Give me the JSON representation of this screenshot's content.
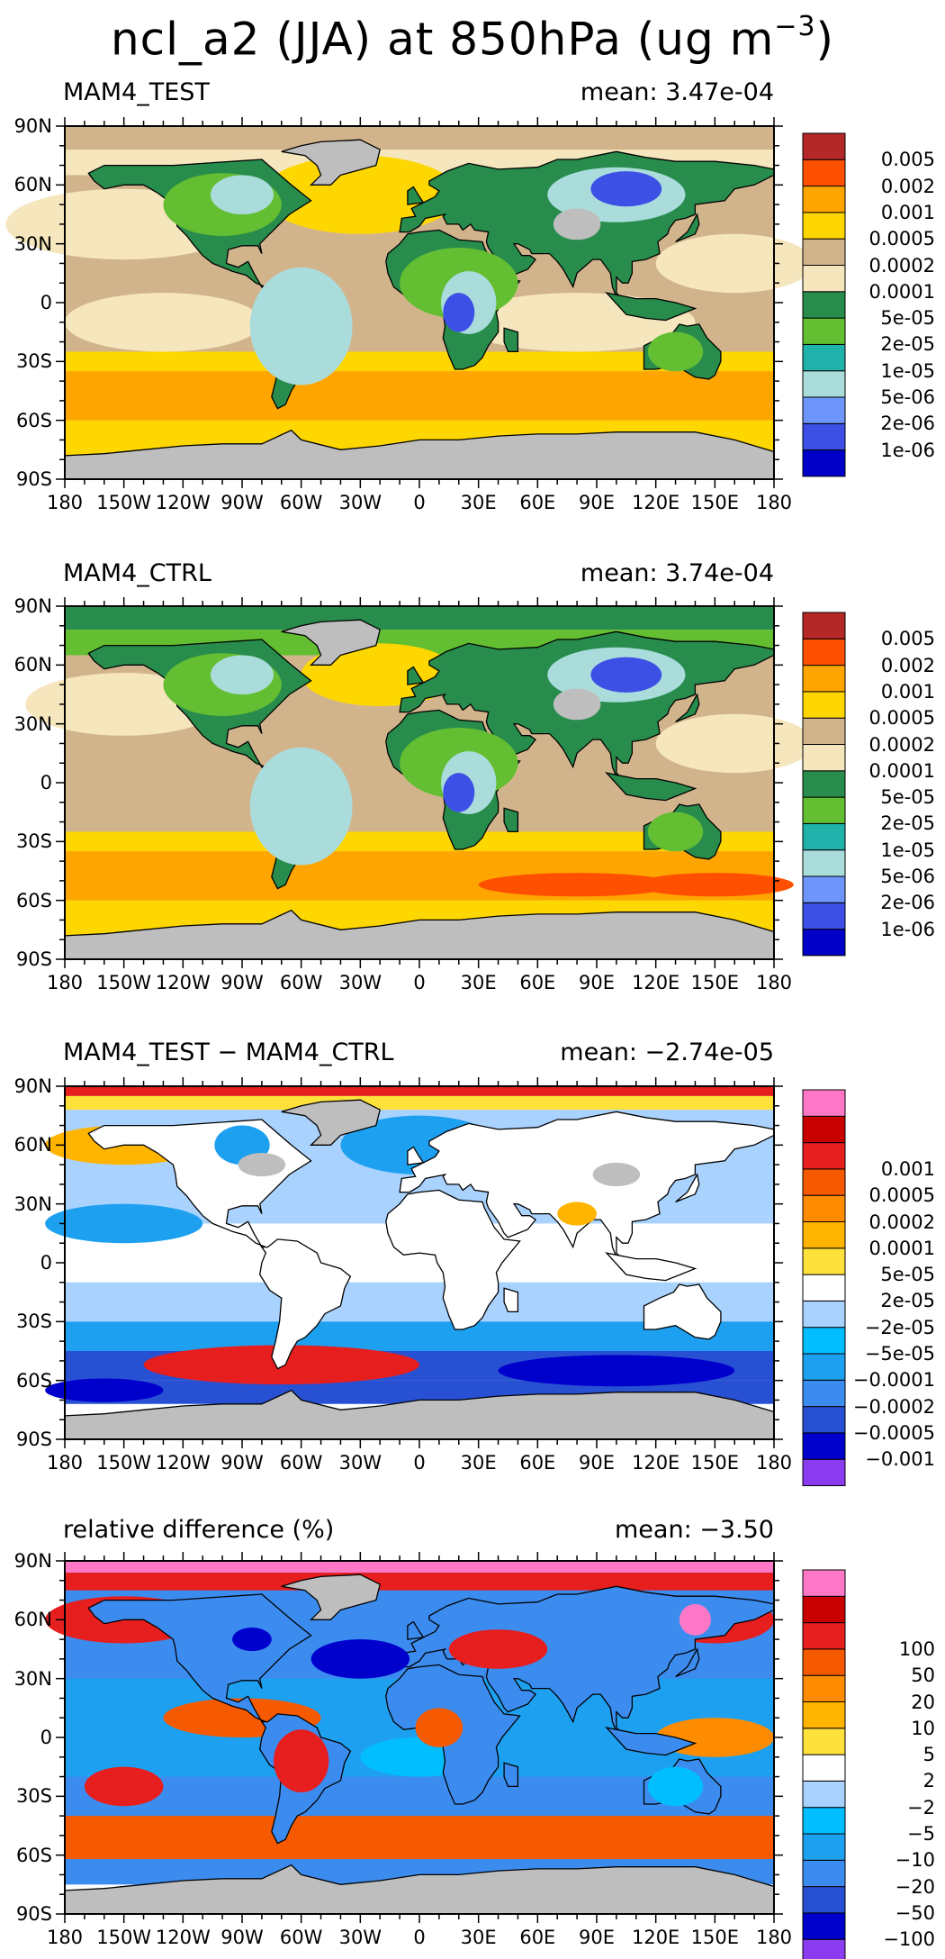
{
  "figure": {
    "title_main": "ncl_a2 (JJA) at 850hPa (ug m",
    "title_unit_exp": "−3",
    "title_close": ")",
    "land_mask_color": "#bebebe",
    "lat_labels": [
      "90N",
      "60N",
      "30N",
      "0",
      "30S",
      "60S",
      "90S"
    ],
    "lon_labels": [
      "180",
      "150W",
      "120W",
      "90W",
      "60W",
      "30W",
      "0",
      "30E",
      "60E",
      "90E",
      "120E",
      "150E",
      "180"
    ]
  },
  "panels": [
    {
      "name": "MAM4_TEST",
      "mean": "mean: 3.47e-04",
      "colors": [
        "#0000c8",
        "#3c50e6",
        "#6e96fa",
        "#aadcdc",
        "#20b2aa",
        "#64be32",
        "#288c4c",
        "#f5e6be",
        "#d2b48c",
        "#ffd700",
        "#ffa500",
        "#ff5000",
        "#b42828"
      ],
      "labels": [
        "1e-06",
        "2e-06",
        "5e-06",
        "1e-05",
        "2e-05",
        "5e-05",
        "0.0001",
        "0.0002",
        "0.0005",
        "0.001",
        "0.002",
        "0.005"
      ]
    },
    {
      "name": "MAM4_CTRL",
      "mean": "mean: 3.74e-04",
      "colors": [
        "#0000c8",
        "#3c50e6",
        "#6e96fa",
        "#aadcdc",
        "#20b2aa",
        "#64be32",
        "#288c4c",
        "#f5e6be",
        "#d2b48c",
        "#ffd700",
        "#ffa500",
        "#ff5000",
        "#b42828"
      ],
      "labels": [
        "1e-06",
        "2e-06",
        "5e-06",
        "1e-05",
        "2e-05",
        "5e-05",
        "0.0001",
        "0.0002",
        "0.0005",
        "0.001",
        "0.002",
        "0.005"
      ]
    },
    {
      "name": "MAM4_TEST − MAM4_CTRL",
      "mean": "mean: −2.74e-05",
      "colors": [
        "#8c3cf0",
        "#0000cd",
        "#2850d2",
        "#3c8cf0",
        "#1ea0f0",
        "#00beff",
        "#aad2ff",
        "#ffffff",
        "#ffe13c",
        "#ffb400",
        "#ff8c00",
        "#f55a00",
        "#e61e1e",
        "#c80000",
        "#ff78c8"
      ],
      "labels": [
        "−0.001",
        "−0.0005",
        "−0.0002",
        "−0.0001",
        "−5e-05",
        "−2e-05",
        "2e-05",
        "5e-05",
        "0.0001",
        "0.0002",
        "0.0005",
        "0.001"
      ]
    },
    {
      "name": "relative difference (%)",
      "mean": "mean: −3.50",
      "colors": [
        "#8c3cf0",
        "#0000cd",
        "#2850d2",
        "#3c8cf0",
        "#1ea0f0",
        "#00beff",
        "#aad2ff",
        "#ffffff",
        "#ffe13c",
        "#ffb400",
        "#ff8c00",
        "#f55a00",
        "#e61e1e",
        "#c80000",
        "#ff78c8"
      ],
      "labels": [
        "−100",
        "−50",
        "−20",
        "−10",
        "−5",
        "−2",
        "2",
        "5",
        "10",
        "20",
        "50",
        "100"
      ]
    }
  ]
}
